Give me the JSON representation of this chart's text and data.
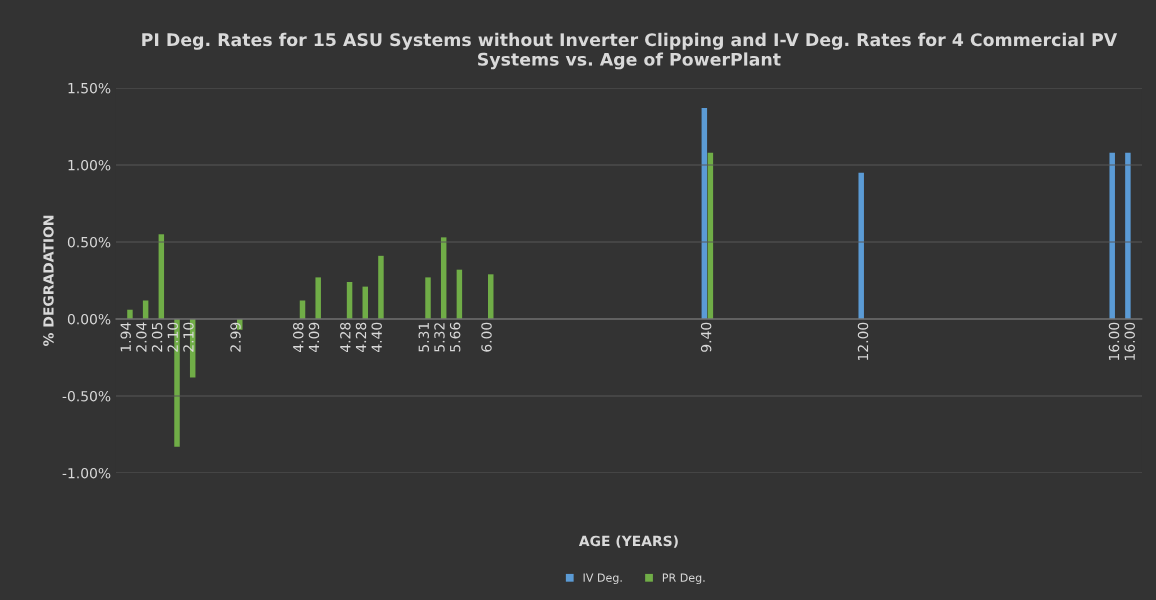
{
  "chart_data": {
    "type": "bar",
    "title": "PI Deg. Rates for 15 ASU Systems without Inverter Clipping and I-V Deg. Rates for 4 Commercial PV Systems vs. Age of PowerPlant",
    "xlabel": "AGE (YEARS)",
    "ylabel": "% DEGRADATION",
    "categories": [
      "1.94",
      "2.04",
      "2.05",
      "2.10",
      "2.10",
      null,
      null,
      "2.99",
      null,
      null,
      null,
      "4.08",
      "4.09",
      null,
      "4.28",
      "4.28",
      "4.40",
      null,
      null,
      "5.31",
      "5.32",
      "5.66",
      null,
      "6.00",
      null,
      null,
      null,
      null,
      null,
      null,
      null,
      null,
      null,
      null,
      null,
      null,
      null,
      "9.40",
      null,
      null,
      null,
      null,
      null,
      null,
      null,
      null,
      null,
      "12.00",
      null,
      null,
      null,
      null,
      null,
      null,
      null,
      null,
      null,
      null,
      null,
      null,
      null,
      null,
      null,
      "16.00",
      "16.00"
    ],
    "series": [
      {
        "name": "IV Deg.",
        "color": "#5b9bd5",
        "values": [
          null,
          null,
          null,
          null,
          null,
          null,
          null,
          null,
          null,
          null,
          null,
          null,
          null,
          null,
          null,
          null,
          null,
          null,
          null,
          null,
          null,
          null,
          null,
          null,
          null,
          null,
          null,
          null,
          null,
          null,
          null,
          null,
          null,
          null,
          null,
          null,
          null,
          1.37,
          null,
          null,
          null,
          null,
          null,
          null,
          null,
          null,
          null,
          0.95,
          null,
          null,
          null,
          null,
          null,
          null,
          null,
          null,
          null,
          null,
          null,
          null,
          null,
          null,
          null,
          1.08,
          1.08
        ]
      },
      {
        "name": "PR Deg.",
        "color": "#70ad47",
        "values": [
          0.06,
          0.12,
          0.55,
          -0.83,
          -0.38,
          null,
          null,
          -0.07,
          null,
          null,
          null,
          0.12,
          0.27,
          null,
          0.24,
          0.21,
          0.41,
          null,
          null,
          0.27,
          0.53,
          0.32,
          null,
          0.29,
          null,
          null,
          null,
          null,
          null,
          null,
          null,
          null,
          null,
          null,
          null,
          null,
          null,
          1.08,
          null,
          null,
          null,
          null,
          null,
          null,
          null,
          null,
          null,
          null,
          null,
          null,
          null,
          null,
          null,
          null,
          null,
          null,
          null,
          null,
          null,
          null,
          null,
          null,
          null,
          null,
          null
        ]
      }
    ],
    "ylim": [
      -1.0,
      1.5
    ],
    "yticks": [
      {
        "value": -1.0,
        "label": "-1.00%"
      },
      {
        "value": -0.5,
        "label": "-0.50%"
      },
      {
        "value": 0,
        "label": "0.00%"
      },
      {
        "value": 0.5,
        "label": "0.50%"
      },
      {
        "value": 1.0,
        "label": "1.00%"
      },
      {
        "value": 1.5,
        "label": "1.50%"
      }
    ],
    "grid": "y",
    "legend": "bottom"
  }
}
